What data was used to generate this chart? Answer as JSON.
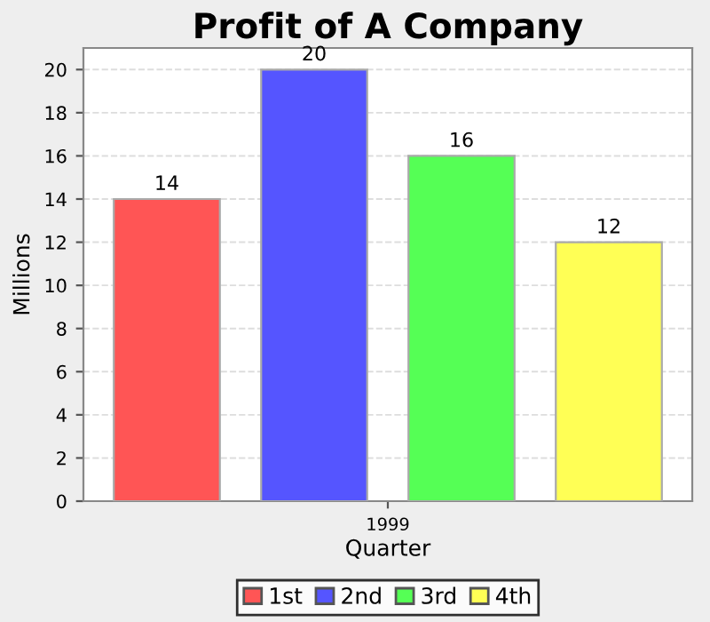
{
  "chart_data": {
    "type": "bar",
    "title": "Profit of A Company",
    "xlabel": "Quarter",
    "ylabel": "Millions",
    "categories": [
      "1999"
    ],
    "series": [
      {
        "name": "1st",
        "color": "#ff5555",
        "values": [
          14
        ]
      },
      {
        "name": "2nd",
        "color": "#5555ff",
        "values": [
          20
        ]
      },
      {
        "name": "3rd",
        "color": "#55ff55",
        "values": [
          16
        ]
      },
      {
        "name": "4th",
        "color": "#ffff55",
        "values": [
          12
        ]
      }
    ],
    "ylim": [
      0,
      21
    ],
    "yticks": [
      0,
      2,
      4,
      6,
      8,
      10,
      12,
      14,
      16,
      18,
      20
    ],
    "grid": "y",
    "legend": "bottom",
    "data_labels": true
  }
}
